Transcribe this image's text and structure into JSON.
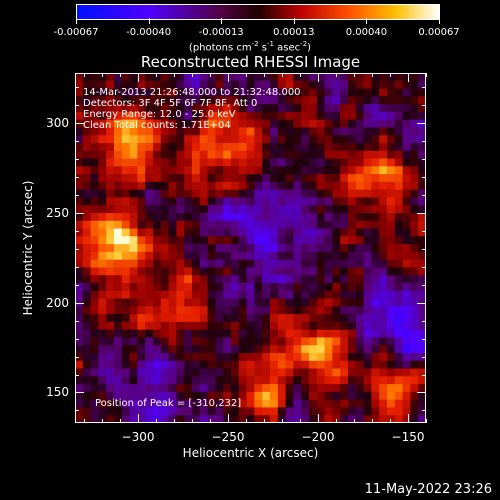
{
  "colorbar": {
    "tick_labels": [
      "-0.00067",
      "-0.00040",
      "-0.00013",
      "0.00013",
      "0.00040",
      "0.00067"
    ],
    "units_text": "(photons cm",
    "units_sup1": "-2",
    "units_mid": " s",
    "units_sup2": "-1",
    "units_mid2": " asec",
    "units_sup3": "-2",
    "units_end": ")"
  },
  "title": "Reconstructed RHESSI Image",
  "annotations": {
    "time_range": "14-Mar-2013 21:26:48.000 to 21:32:48.000",
    "detectors": "Detectors: 3F 4F 5F 6F 7F 8F, Att 0",
    "energy": "Energy Range: 12.0 - 25.0 keV",
    "clean": "Clean    Total counts: 1.71E+04",
    "peak": "Position of Peak = [-310,232]"
  },
  "chart_data": {
    "type": "heatmap",
    "title": "Reconstructed RHESSI Image",
    "xlabel": "Heliocentric X (arcsec)",
    "ylabel": "Heliocentric Y (arcsec)",
    "xlim": [
      -335,
      -140
    ],
    "ylim": [
      133,
      328
    ],
    "x_ticks": [
      -300,
      -250,
      -200,
      -150
    ],
    "y_ticks": [
      150,
      200,
      250,
      300
    ],
    "x_tick_labels": [
      "−300",
      "−250",
      "−200",
      "−150"
    ],
    "y_tick_labels": [
      "150",
      "200",
      "250",
      "300"
    ],
    "value_range": [
      -0.00067,
      0.00067
    ],
    "peak_position": [
      -310,
      232
    ],
    "bright_regions": [
      {
        "x": -310,
        "y": 232,
        "intensity": 1.0
      },
      {
        "x": -305,
        "y": 288,
        "intensity": 0.85
      },
      {
        "x": -200,
        "y": 175,
        "intensity": 0.8
      },
      {
        "x": -165,
        "y": 268,
        "intensity": 0.7
      },
      {
        "x": -250,
        "y": 290,
        "intensity": 0.65
      },
      {
        "x": -280,
        "y": 200,
        "intensity": 0.55
      },
      {
        "x": -160,
        "y": 150,
        "intensity": 0.5
      },
      {
        "x": -230,
        "y": 150,
        "intensity": 0.45
      }
    ],
    "dark_regions": [
      {
        "x": -155,
        "y": 190,
        "intensity": -0.6
      },
      {
        "x": -230,
        "y": 240,
        "intensity": -0.35
      },
      {
        "x": -290,
        "y": 150,
        "intensity": -0.3
      }
    ],
    "colormap": [
      "#0000ff",
      "#8000ff",
      "#600060",
      "#000000",
      "#800000",
      "#ff2000",
      "#ff8000",
      "#ffff80",
      "#ffffff"
    ]
  },
  "timestamp": "11-May-2022 23:26"
}
